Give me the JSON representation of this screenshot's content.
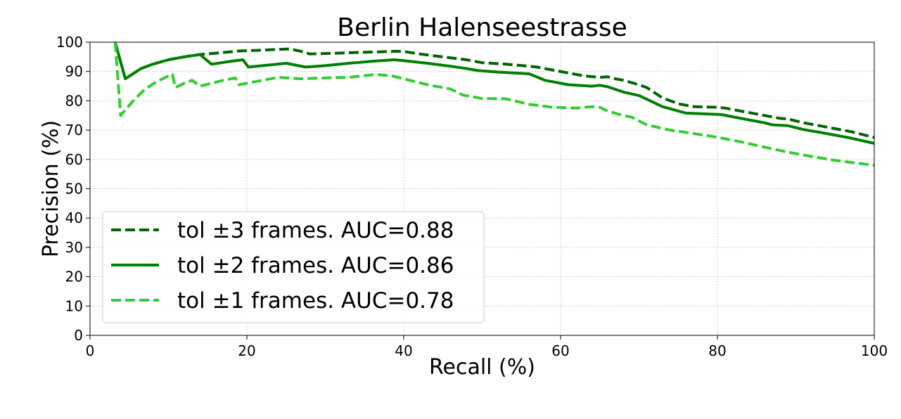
{
  "chart_data": {
    "type": "line",
    "title": "Berlin Halenseestrasse",
    "xlabel": "Recall (%)",
    "ylabel": "Precision (%)",
    "xlim": [
      0,
      100
    ],
    "ylim": [
      0,
      100
    ],
    "x_ticks": [
      "0",
      "20",
      "40",
      "60",
      "80",
      "100"
    ],
    "y_ticks": [
      "0",
      "10",
      "20",
      "30",
      "40",
      "50",
      "60",
      "70",
      "80",
      "90",
      "100"
    ],
    "grid": true,
    "legend_position": "lower-left",
    "series": [
      {
        "name": "tol ±3 frames. AUC=0.88",
        "color": "#006400",
        "style": "dashed",
        "points": [
          [
            3.2,
            100
          ],
          [
            4.5,
            87.5
          ],
          [
            6.5,
            91
          ],
          [
            8,
            92.5
          ],
          [
            10,
            94
          ],
          [
            12,
            95
          ],
          [
            14,
            95.8
          ],
          [
            15,
            96
          ],
          [
            17,
            96.5
          ],
          [
            19,
            97
          ],
          [
            21,
            97.2
          ],
          [
            23,
            97.4
          ],
          [
            25.5,
            97.7
          ],
          [
            27,
            96.8
          ],
          [
            28,
            96
          ],
          [
            31,
            96.2
          ],
          [
            34,
            96.5
          ],
          [
            37,
            96.7
          ],
          [
            39,
            96.9
          ],
          [
            40,
            96.8
          ],
          [
            42,
            96
          ],
          [
            45,
            95
          ],
          [
            48,
            94
          ],
          [
            50,
            93
          ],
          [
            53,
            92.5
          ],
          [
            56,
            91.8
          ],
          [
            57,
            91.5
          ],
          [
            59,
            90.5
          ],
          [
            61,
            89.5
          ],
          [
            63,
            88.5
          ],
          [
            65,
            88
          ],
          [
            66,
            88.2
          ],
          [
            67,
            87.5
          ],
          [
            68,
            87
          ],
          [
            70,
            85.5
          ],
          [
            71,
            84.5
          ],
          [
            73,
            81
          ],
          [
            75,
            79
          ],
          [
            77,
            78
          ],
          [
            80,
            77.8
          ],
          [
            81,
            77.5
          ],
          [
            83,
            76.5
          ],
          [
            85,
            75.5
          ],
          [
            87,
            74.5
          ],
          [
            88,
            74
          ],
          [
            89,
            73.8
          ],
          [
            91,
            72.5
          ],
          [
            94,
            71
          ],
          [
            97,
            69.5
          ],
          [
            100,
            67.5
          ]
        ]
      },
      {
        "name": "tol ±2 frames. AUC=0.86",
        "color": "#008000",
        "style": "solid",
        "points": [
          [
            3.2,
            100
          ],
          [
            4.5,
            87.5
          ],
          [
            6.5,
            91
          ],
          [
            8,
            92.5
          ],
          [
            10,
            94
          ],
          [
            12,
            95
          ],
          [
            14,
            95.8
          ],
          [
            15.5,
            92.5
          ],
          [
            18,
            93.5
          ],
          [
            19.5,
            94
          ],
          [
            20.2,
            91.5
          ],
          [
            22,
            92
          ],
          [
            25,
            92.8
          ],
          [
            27.5,
            91.5
          ],
          [
            30,
            92
          ],
          [
            33,
            92.8
          ],
          [
            36,
            93.5
          ],
          [
            38.8,
            94
          ],
          [
            40,
            93.7
          ],
          [
            43,
            92.8
          ],
          [
            46,
            91.8
          ],
          [
            48,
            91
          ],
          [
            49.5,
            90.3
          ],
          [
            52,
            89.8
          ],
          [
            56,
            89.2
          ],
          [
            58,
            87
          ],
          [
            61,
            85.5
          ],
          [
            64,
            85
          ],
          [
            65,
            85.3
          ],
          [
            66,
            84.8
          ],
          [
            68,
            83
          ],
          [
            70,
            81.8
          ],
          [
            73,
            78
          ],
          [
            76,
            75.8
          ],
          [
            79,
            75.5
          ],
          [
            80.5,
            75.3
          ],
          [
            83,
            74
          ],
          [
            86,
            72.5
          ],
          [
            87,
            71.8
          ],
          [
            89,
            71.5
          ],
          [
            91,
            70.2
          ],
          [
            94,
            68.8
          ],
          [
            97,
            67.3
          ],
          [
            100,
            65.5
          ]
        ]
      },
      {
        "name": "tol ±1 frames. AUC=0.78",
        "color": "#32cd32",
        "style": "dashed",
        "points": [
          [
            3.2,
            100
          ],
          [
            3.9,
            75
          ],
          [
            5.5,
            80
          ],
          [
            7,
            84
          ],
          [
            8.5,
            86.5
          ],
          [
            10,
            88.5
          ],
          [
            10.5,
            89
          ],
          [
            10.9,
            84.5
          ],
          [
            12,
            86
          ],
          [
            13,
            87
          ],
          [
            14,
            85
          ],
          [
            15.5,
            86
          ],
          [
            17,
            87
          ],
          [
            18.5,
            87.8
          ],
          [
            19,
            85.5
          ],
          [
            21,
            86.5
          ],
          [
            24,
            88
          ],
          [
            27,
            87.5
          ],
          [
            30,
            87.8
          ],
          [
            33,
            88
          ],
          [
            36.5,
            89
          ],
          [
            38.5,
            88.5
          ],
          [
            40,
            87.5
          ],
          [
            43,
            85.5
          ],
          [
            46,
            84
          ],
          [
            47.5,
            82
          ],
          [
            50,
            80.8
          ],
          [
            53,
            80.7
          ],
          [
            56,
            78.8
          ],
          [
            59,
            77.8
          ],
          [
            62,
            77.5
          ],
          [
            64,
            78
          ],
          [
            65,
            77.8
          ],
          [
            66,
            76.5
          ],
          [
            68,
            75
          ],
          [
            69,
            74.5
          ],
          [
            71,
            71.8
          ],
          [
            74,
            70
          ],
          [
            76,
            69.2
          ],
          [
            79,
            68
          ],
          [
            80.5,
            67.3
          ],
          [
            83,
            66
          ],
          [
            86,
            64.2
          ],
          [
            89,
            62.5
          ],
          [
            92,
            61
          ],
          [
            95,
            59.7
          ],
          [
            100,
            58
          ]
        ]
      }
    ]
  }
}
